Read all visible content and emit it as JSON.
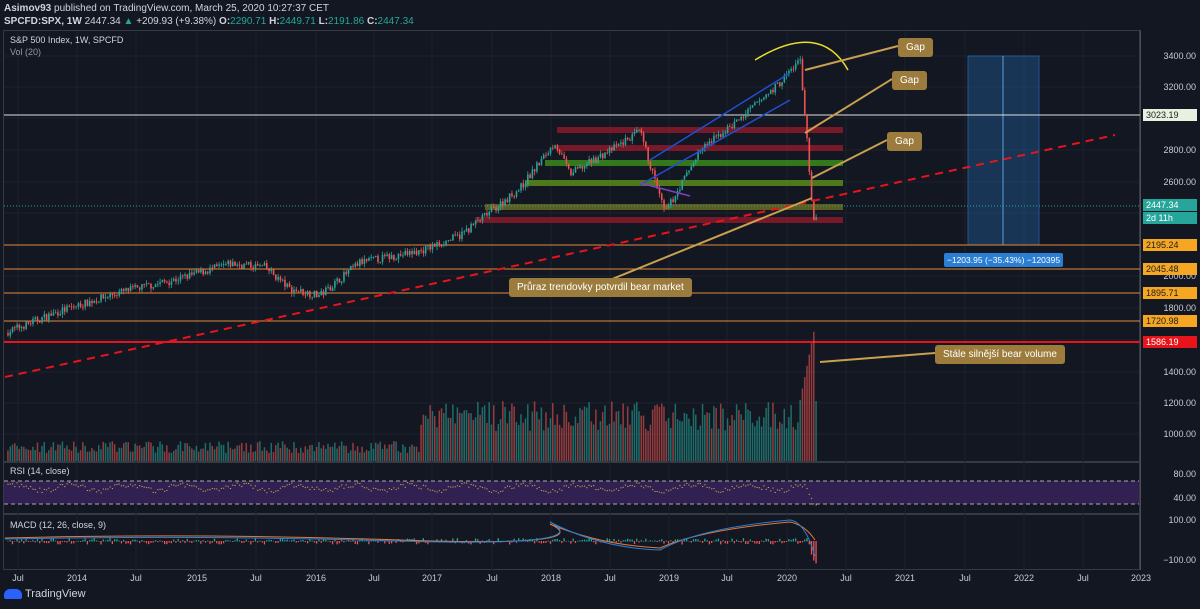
{
  "header": {
    "publisher": "Asimov93",
    "published_text": "published on TradingView.com, March 25, 2020 10:27:37 CET",
    "symbol": "SPCFD:SPX, 1W",
    "last": "2447.34",
    "change": "+209.93 (+9.38%)",
    "o_label": "O:",
    "o": "2290.71",
    "h_label": "H:",
    "h": "2449.71",
    "l_label": "L:",
    "l": "2191.86",
    "c_label": "C:",
    "c": "2447.34"
  },
  "main_pane": {
    "title": "S&P 500 Index, 1W, SPCFD",
    "volume_label": "Vol (20)"
  },
  "rsi_pane": {
    "title": "RSI (14, close)"
  },
  "macd_pane": {
    "title": "MACD (12, 26, close, 9)"
  },
  "price_scale": [
    "3400.00",
    "3200.00",
    "2800.00",
    "2600.00",
    "2000.00",
    "1800.00",
    "1400.00",
    "1200.00",
    "1000.00"
  ],
  "rsi_scale": [
    "80.00",
    "40.00"
  ],
  "macd_scale": [
    "100.00",
    "−100.00"
  ],
  "price_tags": [
    {
      "value": "3023.19",
      "color": "#e8f0e0"
    },
    {
      "value": "2447.34",
      "color": "#26a69a"
    },
    {
      "value": "2d 11h",
      "color": "#26a69a"
    },
    {
      "value": "2195.24",
      "color": "#f5a623"
    },
    {
      "value": "2045.48",
      "color": "#f5a623"
    },
    {
      "value": "1895.71",
      "color": "#f5a623"
    },
    {
      "value": "1720.98",
      "color": "#f5a623"
    },
    {
      "value": "1586.19",
      "color": "#e8141c"
    }
  ],
  "time_axis": [
    "Jul",
    "2014",
    "Jul",
    "2015",
    "Jul",
    "2016",
    "Jul",
    "2017",
    "Jul",
    "2018",
    "Jul",
    "2019",
    "Jul",
    "2020",
    "Jul",
    "2021",
    "Jul",
    "2022",
    "Jul",
    "2023"
  ],
  "annotations": {
    "gap1": "Gap",
    "gap2": "Gap",
    "gap3": "Gap",
    "trendline": "Průraz trendovky potvrdil bear market",
    "volume": "Stále silnější bear volume"
  },
  "measure_label": "−1203.95 (−35.43%) −120395",
  "footer": {
    "brand": "TradingView"
  }
}
